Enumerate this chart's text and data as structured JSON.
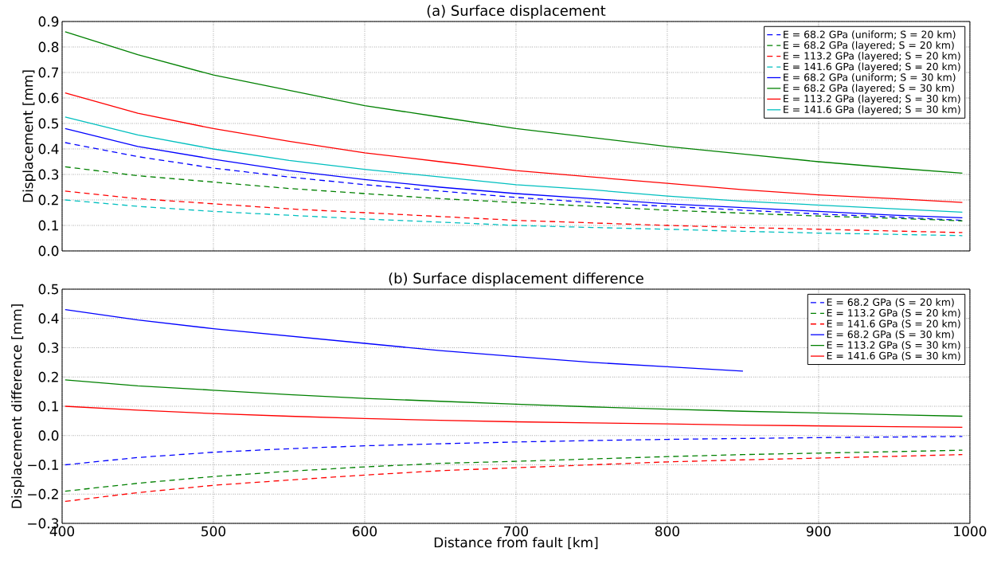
{
  "chart_data": [
    {
      "type": "line",
      "title": "(a) Surface displacement",
      "ylabel": "Displacement [mm]",
      "x": [
        402,
        450,
        500,
        550,
        600,
        650,
        700,
        750,
        800,
        850,
        900,
        950,
        995
      ],
      "xlim": [
        400,
        1000
      ],
      "xticks": [
        400,
        500,
        600,
        700,
        800,
        900,
        1000
      ],
      "ylim": [
        0,
        0.9
      ],
      "yticks": [
        {
          "value": 0,
          "label": "0.0"
        },
        0.1,
        0.2,
        0.3,
        0.4,
        0.5,
        0.6,
        0.7,
        0.8,
        0.9
      ],
      "tick_labels": "y",
      "grid": true,
      "legend": "top right",
      "series": [
        {
          "name": "E = 68.2 GPa (uniform; S = 20 km)",
          "color": "#0000ff",
          "line_style": "dashed",
          "values": [
            0.425,
            0.37,
            0.325,
            0.29,
            0.26,
            0.235,
            0.21,
            0.19,
            0.175,
            0.16,
            0.145,
            0.133,
            0.12
          ]
        },
        {
          "name": "E = 68.2 GPa (layered; S = 20 km)",
          "color": "#008000",
          "line_style": "dashed",
          "values": [
            0.33,
            0.295,
            0.27,
            0.245,
            0.225,
            0.205,
            0.19,
            0.175,
            0.16,
            0.148,
            0.137,
            0.128,
            0.118
          ]
        },
        {
          "name": "E = 113.2 GPa (layered; S = 20 km)",
          "color": "#ff0000",
          "line_style": "dashed",
          "values": [
            0.235,
            0.205,
            0.185,
            0.165,
            0.15,
            0.135,
            0.12,
            0.11,
            0.1,
            0.092,
            0.085,
            0.078,
            0.072
          ]
        },
        {
          "name": "E = 141.6 GPa (layered; S = 20 km)",
          "color": "#00bfbf",
          "line_style": "dashed",
          "values": [
            0.2,
            0.175,
            0.155,
            0.14,
            0.125,
            0.113,
            0.1,
            0.092,
            0.085,
            0.077,
            0.07,
            0.065,
            0.06
          ]
        },
        {
          "name": "E = 68.2 GPa (uniform; S = 30 km)",
          "color": "#0000ff",
          "line_style": "solid",
          "values": [
            0.48,
            0.41,
            0.36,
            0.315,
            0.28,
            0.25,
            0.225,
            0.205,
            0.185,
            0.17,
            0.155,
            0.14,
            0.13
          ]
        },
        {
          "name": "E = 68.2 GPa (layered; S = 30 km)",
          "color": "#008000",
          "line_style": "solid",
          "values": [
            0.86,
            0.77,
            0.69,
            0.63,
            0.57,
            0.525,
            0.48,
            0.445,
            0.41,
            0.38,
            0.35,
            0.325,
            0.305
          ]
        },
        {
          "name": "E = 113.2 GPa (layered; S = 30 km)",
          "color": "#ff0000",
          "line_style": "solid",
          "values": [
            0.62,
            0.54,
            0.48,
            0.43,
            0.385,
            0.35,
            0.315,
            0.29,
            0.265,
            0.24,
            0.22,
            0.205,
            0.19
          ]
        },
        {
          "name": "E = 141.6 GPa (layered; S = 30 km)",
          "color": "#00bfbf",
          "line_style": "solid",
          "values": [
            0.525,
            0.455,
            0.4,
            0.355,
            0.32,
            0.29,
            0.26,
            0.24,
            0.215,
            0.195,
            0.18,
            0.165,
            0.152
          ]
        }
      ]
    },
    {
      "type": "line",
      "title": "(b) Surface displacement difference",
      "xlabel": "Distance from fault [km]",
      "ylabel": "Displacement difference [mm]",
      "x": [
        402,
        450,
        500,
        550,
        600,
        650,
        700,
        750,
        800,
        850,
        900,
        950,
        995
      ],
      "xlim": [
        400,
        1000
      ],
      "xticks": [
        400,
        500,
        600,
        700,
        800,
        900,
        1000
      ],
      "ylim": [
        -0.3,
        0.5
      ],
      "yticks": [
        {
          "value": -0.3,
          "label": "−0.3"
        },
        {
          "value": -0.2,
          "label": "−0.2"
        },
        {
          "value": -0.1,
          "label": "−0.1"
        },
        {
          "value": 0,
          "label": "0.0"
        },
        0.1,
        0.2,
        0.3,
        0.4,
        0.5
      ],
      "grid": true,
      "legend": "top right",
      "series": [
        {
          "name": "E = 68.2 GPa (S = 20 km)",
          "color": "#0000ff",
          "line_style": "dashed",
          "values": [
            -0.1,
            -0.075,
            -0.057,
            -0.045,
            -0.035,
            -0.028,
            -0.022,
            -0.017,
            -0.013,
            -0.01,
            -0.007,
            -0.005,
            -0.003
          ]
        },
        {
          "name": "E = 113.2 GPa (S = 20 km)",
          "color": "#008000",
          "line_style": "dashed",
          "values": [
            -0.19,
            -0.163,
            -0.14,
            -0.122,
            -0.107,
            -0.095,
            -0.088,
            -0.08,
            -0.072,
            -0.065,
            -0.06,
            -0.055,
            -0.05
          ]
        },
        {
          "name": "E = 141.6 GPa (S = 20 km)",
          "color": "#ff0000",
          "line_style": "dashed",
          "values": [
            -0.225,
            -0.195,
            -0.17,
            -0.152,
            -0.135,
            -0.12,
            -0.11,
            -0.1,
            -0.09,
            -0.083,
            -0.077,
            -0.071,
            -0.065
          ]
        },
        {
          "name": "E = 68.2 GPa (S = 30 km)",
          "color": "#0000ff",
          "line_style": "solid",
          "values": [
            0.43,
            0.395,
            0.365,
            0.34,
            0.315,
            0.29,
            0.27,
            0.25,
            0.235,
            0.22,
            null,
            null,
            null
          ]
        },
        {
          "name": "E = 113.2 GPa (S = 30 km)",
          "color": "#008000",
          "line_style": "solid",
          "values": [
            0.19,
            0.17,
            0.155,
            0.14,
            0.127,
            0.117,
            0.107,
            0.098,
            0.09,
            0.083,
            0.077,
            0.071,
            0.066
          ]
        },
        {
          "name": "E = 141.6 GPa (S = 30 km)",
          "color": "#ff0000",
          "line_style": "solid",
          "values": [
            0.1,
            0.087,
            0.075,
            0.066,
            0.058,
            0.052,
            0.047,
            0.043,
            0.04,
            0.036,
            0.033,
            0.03,
            0.028
          ]
        }
      ]
    }
  ]
}
